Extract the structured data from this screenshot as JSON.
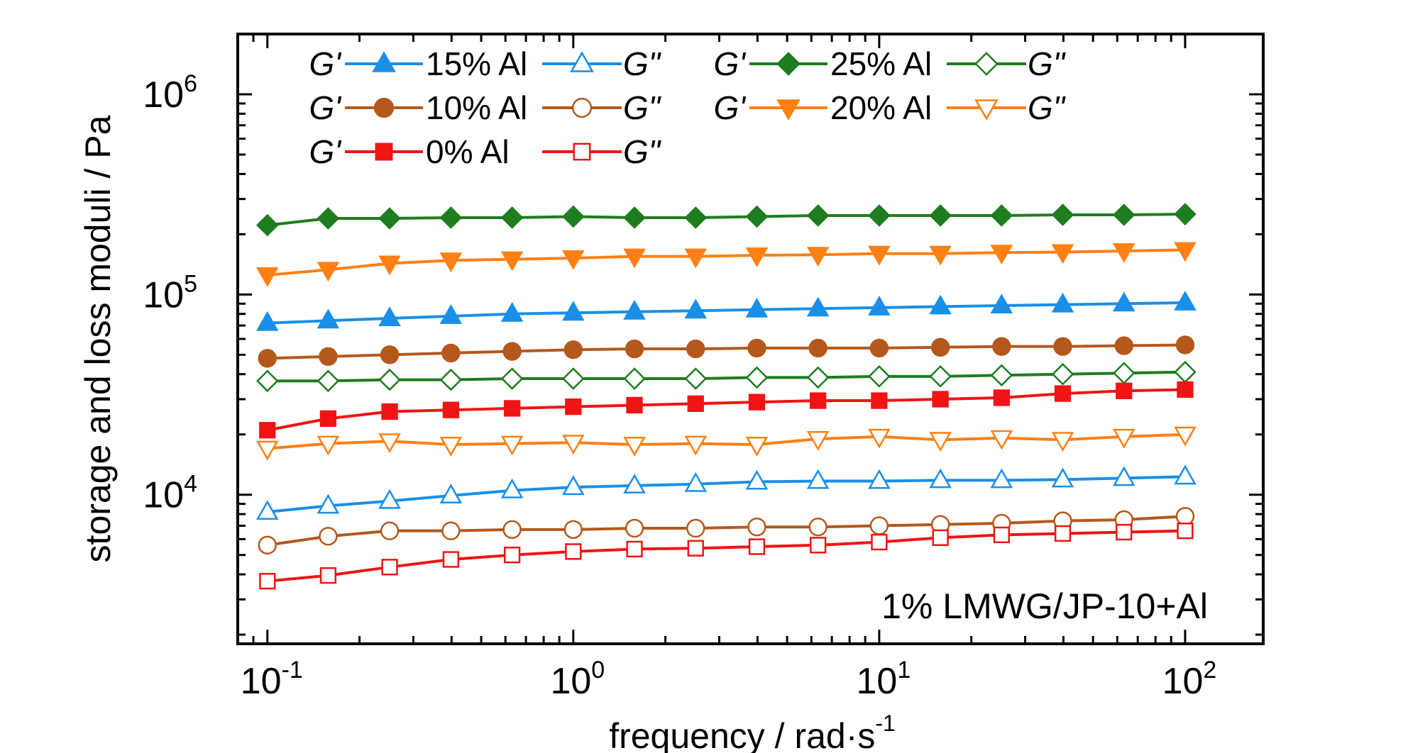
{
  "chart_data": {
    "type": "line",
    "xscale": "log",
    "yscale": "log",
    "xlim": [
      0.08,
      180
    ],
    "ylim": [
      1800,
      2000000
    ],
    "xlabel": "frequency / rad·s",
    "xlabel_sup": "-1",
    "ylabel": "storage and loss moduli / Pa",
    "annotation": "1% LMWG/JP-10+Al",
    "x_ticks": [
      {
        "value": 0.1,
        "base": "10",
        "exp": "-1"
      },
      {
        "value": 1,
        "base": "10",
        "exp": "0"
      },
      {
        "value": 10,
        "base": "10",
        "exp": "1"
      },
      {
        "value": 100,
        "base": "10",
        "exp": "2"
      }
    ],
    "y_ticks": [
      {
        "value": 10000,
        "base": "10",
        "exp": "4"
      },
      {
        "value": 100000,
        "base": "10",
        "exp": "5"
      },
      {
        "value": 1000000,
        "base": "10",
        "exp": "6"
      }
    ],
    "x": [
      0.1,
      0.158,
      0.251,
      0.398,
      0.631,
      1,
      1.585,
      2.512,
      3.981,
      6.31,
      10,
      15.85,
      25.12,
      39.81,
      63.1,
      100
    ],
    "legend": [
      {
        "label_g1": "G'",
        "label_mid": "15% Al",
        "label_g2": "G\"",
        "color": "#1a8fe8",
        "marker": "triangle-up"
      },
      {
        "label_g1": "G'",
        "label_mid": "25% Al",
        "label_g2": "G\"",
        "color": "#1e7d1e",
        "marker": "diamond"
      },
      {
        "label_g1": "G'",
        "label_mid": "10% Al",
        "label_g2": "G\"",
        "color": "#b5581c",
        "marker": "circle"
      },
      {
        "label_g1": "G'",
        "label_mid": "20% Al",
        "label_g2": "G\"",
        "color": "#ff8012",
        "marker": "triangle-down"
      },
      {
        "label_g1": "G'",
        "label_mid": "0%  Al",
        "label_g2": "G\"",
        "color": "#f01414",
        "marker": "square"
      }
    ],
    "series": [
      {
        "group": "25% Al",
        "modulus": "G'",
        "color": "#1e7d1e",
        "marker": "diamond",
        "filled": true,
        "values": [
          222000,
          240000,
          240000,
          242000,
          242000,
          245000,
          242000,
          242000,
          245000,
          248000,
          248000,
          248000,
          248000,
          250000,
          250000,
          252000
        ]
      },
      {
        "group": "20% Al",
        "modulus": "G'",
        "color": "#ff8012",
        "marker": "triangle-down",
        "filled": true,
        "values": [
          125000,
          133000,
          143000,
          148000,
          150000,
          152000,
          155000,
          155000,
          157000,
          158000,
          160000,
          160000,
          162000,
          163000,
          165000,
          167000
        ]
      },
      {
        "group": "15% Al",
        "modulus": "G'",
        "color": "#1a8fe8",
        "marker": "triangle-up",
        "filled": true,
        "values": [
          72000,
          74000,
          76000,
          78000,
          80000,
          81000,
          82000,
          83000,
          84000,
          85000,
          86000,
          87000,
          88000,
          89000,
          90000,
          91000
        ]
      },
      {
        "group": "10% Al",
        "modulus": "G'",
        "color": "#b5581c",
        "marker": "circle",
        "filled": true,
        "values": [
          48000,
          49000,
          50000,
          51000,
          52000,
          53000,
          53500,
          53500,
          54000,
          54000,
          54000,
          54500,
          55000,
          55000,
          55500,
          56000
        ]
      },
      {
        "group": "25% Al",
        "modulus": "G\"",
        "color": "#1e7d1e",
        "marker": "diamond",
        "filled": false,
        "values": [
          37000,
          37000,
          37500,
          37500,
          38000,
          38000,
          38000,
          38000,
          38500,
          38500,
          39000,
          39000,
          39500,
          40000,
          40500,
          41000
        ]
      },
      {
        "group": "0%  Al",
        "modulus": "G'",
        "color": "#f01414",
        "marker": "square",
        "filled": true,
        "values": [
          21000,
          24000,
          26000,
          26500,
          27000,
          27500,
          28000,
          28500,
          29000,
          29500,
          29500,
          30000,
          30500,
          32000,
          33000,
          33500
        ]
      },
      {
        "group": "20% Al",
        "modulus": "G\"",
        "color": "#ff8012",
        "marker": "triangle-down",
        "filled": false,
        "values": [
          17000,
          18000,
          18500,
          17800,
          18000,
          18200,
          17800,
          18000,
          17800,
          19000,
          19500,
          18800,
          19200,
          18800,
          19500,
          20000
        ]
      },
      {
        "group": "15% Al",
        "modulus": "G\"",
        "color": "#1a8fe8",
        "marker": "triangle-up",
        "filled": false,
        "values": [
          8200,
          8800,
          9300,
          9900,
          10500,
          10900,
          11100,
          11300,
          11600,
          11700,
          11700,
          11800,
          11800,
          11900,
          12100,
          12300
        ]
      },
      {
        "group": "10% Al",
        "modulus": "G\"",
        "color": "#b5581c",
        "marker": "circle",
        "filled": false,
        "values": [
          5600,
          6200,
          6600,
          6600,
          6700,
          6700,
          6800,
          6800,
          6900,
          6900,
          7000,
          7100,
          7200,
          7400,
          7500,
          7800
        ]
      },
      {
        "group": "0%  Al",
        "modulus": "G\"",
        "color": "#f01414",
        "marker": "square",
        "filled": false,
        "values": [
          3700,
          3950,
          4350,
          4750,
          5000,
          5200,
          5350,
          5400,
          5500,
          5600,
          5800,
          6100,
          6300,
          6400,
          6500,
          6600
        ]
      }
    ]
  }
}
